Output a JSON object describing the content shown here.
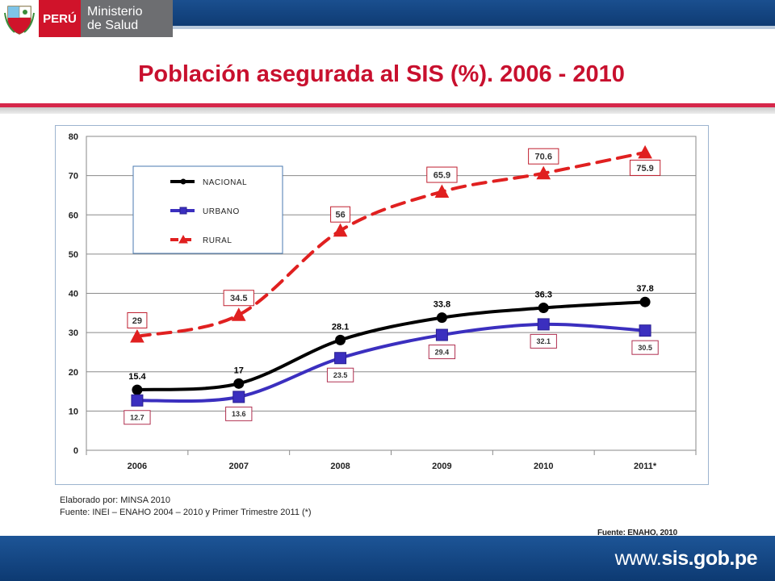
{
  "header": {
    "brand_country": "PERÚ",
    "brand_ministry_line1": "Ministerio",
    "brand_ministry_line2": "de Salud"
  },
  "title": "Población asegurada al SIS (%). 2006 - 2010",
  "notes": {
    "line1": "Elaborado por: MINSA 2010",
    "line2": "Fuente: INEI – ENAHO 2004 – 2010 y Primer Trimestre 2011 (*)"
  },
  "chart_source": "Fuente: ENAHO, 2010",
  "footer": {
    "url_prefix": "www.",
    "url_domain": "sis.gob.pe"
  },
  "colors": {
    "title": "#c8102e",
    "nacional": "#000000",
    "urbano": "#3b2fbf",
    "rural": "#e02020",
    "footer": "#1d5597"
  },
  "chart_data": {
    "type": "line",
    "categories": [
      "2006",
      "2007",
      "2008",
      "2009",
      "2010",
      "2011*"
    ],
    "ylim": [
      0,
      80
    ],
    "yticks": [
      0,
      10,
      20,
      30,
      40,
      50,
      60,
      70,
      80
    ],
    "grid": true,
    "legend_position": "top-left",
    "series": [
      {
        "name": "NACIONAL",
        "values": [
          15.4,
          17,
          28.1,
          33.8,
          36.3,
          37.8
        ],
        "labels": [
          "15.4",
          "17",
          "28.1",
          "33.8",
          "36.3",
          "37.8"
        ]
      },
      {
        "name": "URBANO",
        "values": [
          12.7,
          13.6,
          23.5,
          29.4,
          32.1,
          30.5
        ],
        "labels": [
          "12.7",
          "13.6",
          "23.5",
          "29.4",
          "32.1",
          "30.5"
        ]
      },
      {
        "name": "RURAL",
        "values": [
          29,
          34.5,
          56,
          65.9,
          70.6,
          75.9
        ],
        "labels": [
          "29",
          "34.5",
          "56",
          "65.9",
          "70.6",
          "75.9"
        ]
      }
    ]
  }
}
